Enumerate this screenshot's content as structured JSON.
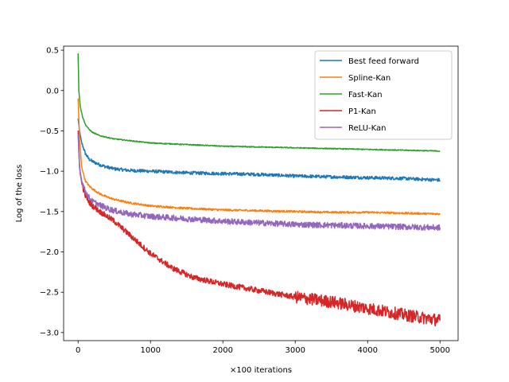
{
  "chart_data": {
    "type": "line",
    "title": "",
    "xlabel": "×100 iterations",
    "ylabel": "Log of the loss",
    "xlim": [
      -200,
      5250
    ],
    "ylim": [
      -3.1,
      0.55
    ],
    "xticks": [
      0,
      1000,
      2000,
      3000,
      4000,
      5000
    ],
    "xtick_labels": [
      "0",
      "1000",
      "2000",
      "3000",
      "4000",
      "5000"
    ],
    "yticks": [
      0.5,
      0.0,
      -0.5,
      -1.0,
      -1.5,
      -2.0,
      -2.5,
      -3.0
    ],
    "ytick_labels": [
      "0.5",
      "0.0",
      "−0.5",
      "−1.0",
      "−1.5",
      "−2.0",
      "−2.5",
      "−3.0"
    ],
    "grid": false,
    "legend_position": "top-right",
    "series": [
      {
        "name": "Best feed forward",
        "color": "#1f77b4",
        "noise": 0.02,
        "x": [
          0,
          20,
          50,
          100,
          150,
          200,
          300,
          400,
          500,
          700,
          1000,
          1500,
          2000,
          2500,
          3000,
          3500,
          4000,
          4500,
          5000
        ],
        "y": [
          -0.35,
          -0.5,
          -0.65,
          -0.78,
          -0.85,
          -0.88,
          -0.92,
          -0.95,
          -0.97,
          -0.99,
          -1.0,
          -1.02,
          -1.03,
          -1.04,
          -1.06,
          -1.07,
          -1.08,
          -1.09,
          -1.11
        ]
      },
      {
        "name": "Spline-Kan",
        "color": "#ff7f0e",
        "noise": 0.012,
        "x": [
          0,
          20,
          50,
          100,
          150,
          200,
          300,
          400,
          500,
          700,
          1000,
          1500,
          2000,
          2500,
          3000,
          3500,
          4000,
          4500,
          5000
        ],
        "y": [
          -0.1,
          -0.6,
          -0.95,
          -1.12,
          -1.18,
          -1.22,
          -1.28,
          -1.32,
          -1.35,
          -1.39,
          -1.43,
          -1.46,
          -1.48,
          -1.49,
          -1.5,
          -1.51,
          -1.51,
          -1.52,
          -1.53
        ]
      },
      {
        "name": "Fast-Kan",
        "color": "#2ca02c",
        "noise": 0.006,
        "x": [
          0,
          10,
          30,
          60,
          100,
          150,
          200,
          300,
          400,
          500,
          700,
          1000,
          1500,
          2000,
          2500,
          3000,
          3500,
          4000,
          4500,
          5000
        ],
        "y": [
          0.46,
          0.0,
          -0.2,
          -0.32,
          -0.42,
          -0.48,
          -0.52,
          -0.56,
          -0.58,
          -0.6,
          -0.62,
          -0.65,
          -0.67,
          -0.69,
          -0.7,
          -0.71,
          -0.72,
          -0.73,
          -0.74,
          -0.75
        ]
      },
      {
        "name": "P1-Kan",
        "color": "#d62728",
        "noise": 0.035,
        "x": [
          0,
          20,
          50,
          100,
          150,
          200,
          300,
          400,
          500,
          700,
          1000,
          1300,
          1600,
          2000,
          2500,
          3000,
          3500,
          4000,
          4500,
          5000
        ],
        "y": [
          -0.5,
          -0.95,
          -1.15,
          -1.3,
          -1.38,
          -1.43,
          -1.5,
          -1.56,
          -1.62,
          -1.78,
          -2.02,
          -2.2,
          -2.32,
          -2.4,
          -2.48,
          -2.56,
          -2.62,
          -2.7,
          -2.78,
          -2.85
        ]
      },
      {
        "name": "ReLU-Kan",
        "color": "#9467bd",
        "noise": 0.03,
        "x": [
          0,
          20,
          50,
          100,
          150,
          200,
          300,
          400,
          500,
          700,
          1000,
          1500,
          2000,
          2500,
          3000,
          3500,
          4000,
          4500,
          5000
        ],
        "y": [
          -0.55,
          -0.95,
          -1.12,
          -1.25,
          -1.32,
          -1.37,
          -1.42,
          -1.46,
          -1.49,
          -1.53,
          -1.56,
          -1.59,
          -1.62,
          -1.64,
          -1.66,
          -1.67,
          -1.68,
          -1.69,
          -1.7
        ]
      }
    ]
  }
}
